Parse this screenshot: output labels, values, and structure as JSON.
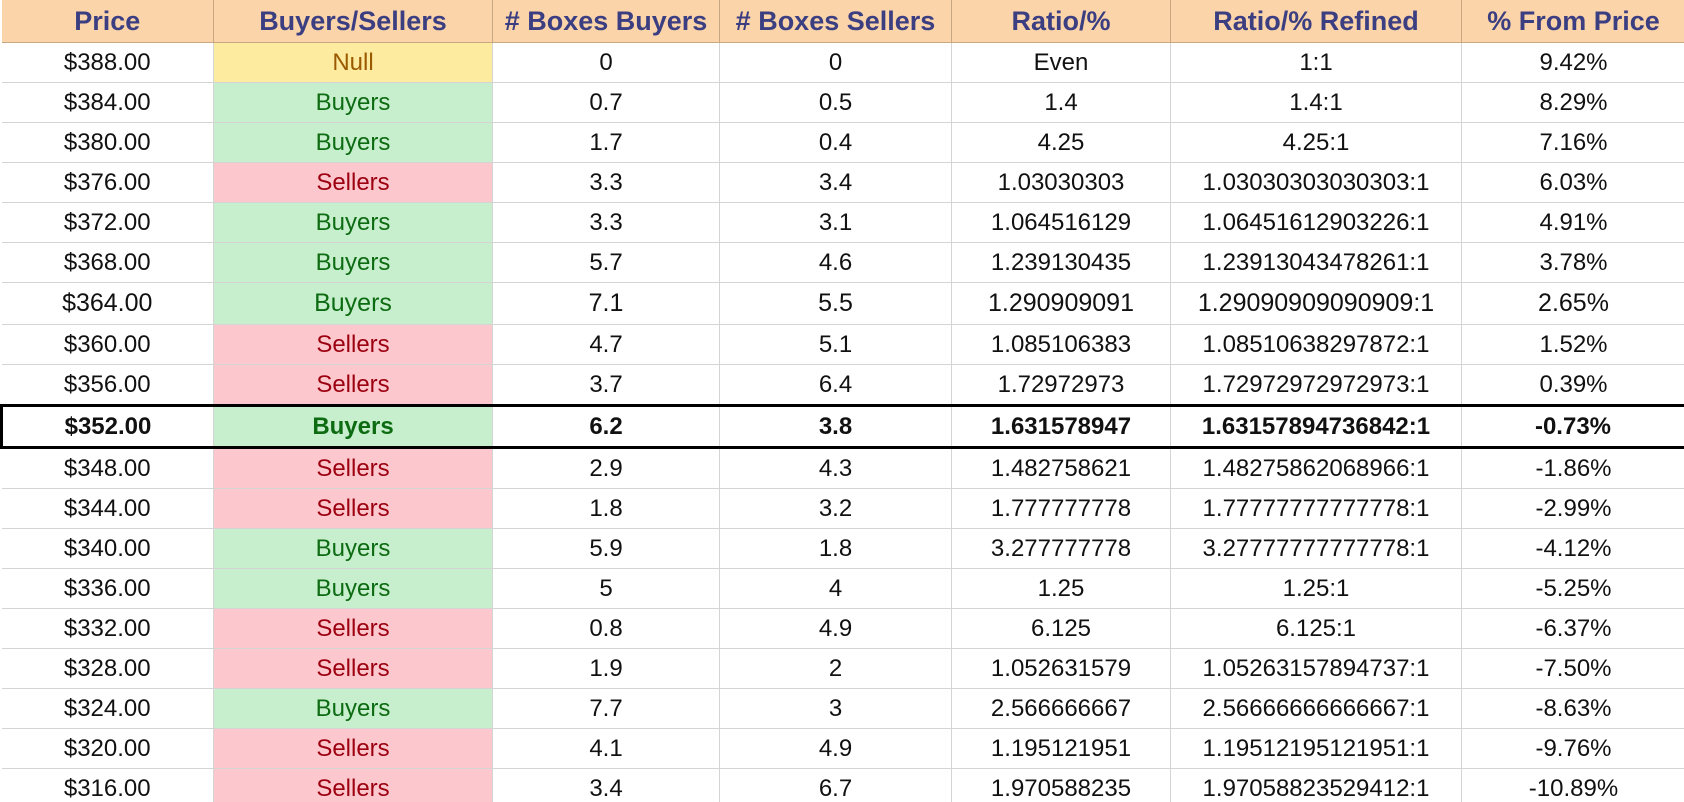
{
  "table": {
    "headers": [
      "Price",
      "Buyers/Sellers",
      "# Boxes Buyers",
      "# Boxes Sellers",
      "Ratio/%",
      "Ratio/% Refined",
      "% From Price"
    ],
    "rows": [
      [
        "$388.00",
        "Null",
        "0",
        "0",
        "Even",
        "1:1",
        "9.42%"
      ],
      [
        "$384.00",
        "Buyers",
        "0.7",
        "0.5",
        "1.4",
        "1.4:1",
        "8.29%"
      ],
      [
        "$380.00",
        "Buyers",
        "1.7",
        "0.4",
        "4.25",
        "4.25:1",
        "7.16%"
      ],
      [
        "$376.00",
        "Sellers",
        "3.3",
        "3.4",
        "1.03030303",
        "1.03030303030303:1",
        "6.03%"
      ],
      [
        "$372.00",
        "Buyers",
        "3.3",
        "3.1",
        "1.064516129",
        "1.06451612903226:1",
        "4.91%"
      ],
      [
        "$368.00",
        "Buyers",
        "5.7",
        "4.6",
        "1.239130435",
        "1.23913043478261:1",
        "3.78%"
      ],
      [
        "$364.00",
        "Buyers",
        "7.1",
        "5.5",
        "1.290909091",
        "1.29090909090909:1",
        "2.65%"
      ],
      [
        "$360.00",
        "Sellers",
        "4.7",
        "5.1",
        "1.085106383",
        "1.08510638297872:1",
        "1.52%"
      ],
      [
        "$356.00",
        "Sellers",
        "3.7",
        "6.4",
        "1.72972973",
        "1.72972972972973:1",
        "0.39%"
      ],
      [
        "$352.00",
        "Buyers",
        "6.2",
        "3.8",
        "1.631578947",
        "1.63157894736842:1",
        "-0.73%"
      ],
      [
        "$348.00",
        "Sellers",
        "2.9",
        "4.3",
        "1.482758621",
        "1.48275862068966:1",
        "-1.86%"
      ],
      [
        "$344.00",
        "Sellers",
        "1.8",
        "3.2",
        "1.777777778",
        "1.77777777777778:1",
        "-2.99%"
      ],
      [
        "$340.00",
        "Buyers",
        "5.9",
        "1.8",
        "3.277777778",
        "3.27777777777778:1",
        "-4.12%"
      ],
      [
        "$336.00",
        "Buyers",
        "5",
        "4",
        "1.25",
        "1.25:1",
        "-5.25%"
      ],
      [
        "$332.00",
        "Sellers",
        "0.8",
        "4.9",
        "6.125",
        "6.125:1",
        "-6.37%"
      ],
      [
        "$328.00",
        "Sellers",
        "1.9",
        "2",
        "1.052631579",
        "1.05263157894737:1",
        "-7.50%"
      ],
      [
        "$324.00",
        "Buyers",
        "7.7",
        "3",
        "2.566666667",
        "2.56666666666667:1",
        "-8.63%"
      ],
      [
        "$320.00",
        "Sellers",
        "4.1",
        "4.9",
        "1.195121951",
        "1.19512195121951:1",
        "-9.76%"
      ],
      [
        "$316.00",
        "Sellers",
        "3.4",
        "6.7",
        "1.970588235",
        "1.97058823529412:1",
        "-10.89%"
      ]
    ]
  },
  "colors": {
    "header_bg": "#fbd4a9",
    "header_text": "#3b3f82",
    "buyers_bg": "#c7efcd",
    "buyers_text": "#0d6b12",
    "sellers_bg": "#fdc7ce",
    "sellers_text": "#9c0010",
    "null_bg": "#fdeba0",
    "null_text": "#9a5a00",
    "current_row_border": "#000000"
  }
}
